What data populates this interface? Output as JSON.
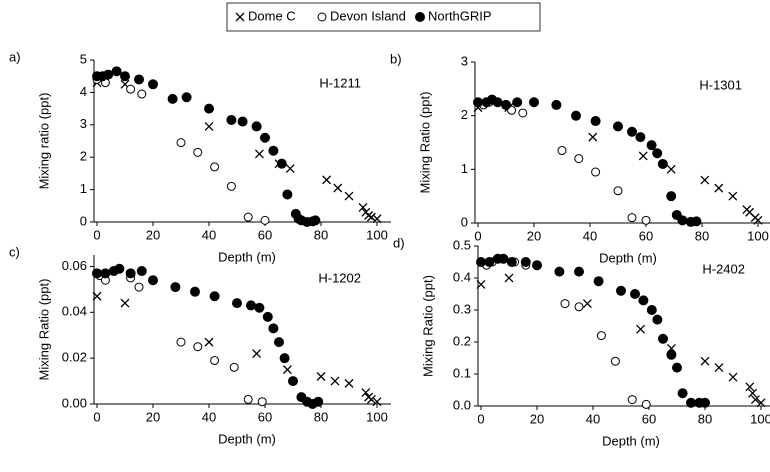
{
  "legend": [
    {
      "name": "Dome C",
      "marker": "cross"
    },
    {
      "name": "Devon Island",
      "marker": "open"
    },
    {
      "name": "NorthGRIP",
      "marker": "filled"
    }
  ],
  "chart_data": [
    {
      "type": "scatter",
      "panel_label": "a)",
      "title": "H-1211",
      "xlabel": "Depth (m)",
      "ylabel": "Mixing ratio (ppt)",
      "xlim": [
        0,
        105
      ],
      "xticks": [
        0,
        20,
        40,
        60,
        80,
        100
      ],
      "ylim": [
        0,
        5
      ],
      "yticks": [
        0,
        1,
        2,
        3,
        4,
        5
      ],
      "series": [
        {
          "marker": "cross",
          "color": "#000000",
          "x": [
            0,
            10,
            40,
            58,
            65,
            69,
            82,
            86,
            90,
            95,
            96,
            97,
            98,
            100
          ],
          "values": [
            4.3,
            4.25,
            2.95,
            2.1,
            1.8,
            1.65,
            1.3,
            1.05,
            0.8,
            0.45,
            0.3,
            0.2,
            0.15,
            0.1
          ]
        },
        {
          "marker": "open",
          "color": "#000000",
          "x": [
            0,
            3,
            12,
            16,
            30,
            36,
            42,
            48,
            54,
            60
          ],
          "values": [
            4.4,
            4.3,
            4.1,
            3.95,
            2.45,
            2.15,
            1.7,
            1.1,
            0.15,
            0.05
          ]
        },
        {
          "marker": "filled",
          "color": "#000000",
          "x": [
            0,
            2,
            4,
            7,
            10,
            15,
            20,
            27,
            32,
            40,
            48,
            52,
            57,
            60,
            63,
            66,
            68,
            71,
            72,
            73,
            75,
            77,
            78
          ],
          "values": [
            4.5,
            4.5,
            4.55,
            4.65,
            4.5,
            4.4,
            4.25,
            3.8,
            3.85,
            3.5,
            3.15,
            3.1,
            2.95,
            2.6,
            2.2,
            1.8,
            0.85,
            0.25,
            0.1,
            0.05,
            0.0,
            0.02,
            0.05
          ]
        }
      ]
    },
    {
      "type": "scatter",
      "panel_label": "b)",
      "title": "H-1301",
      "xlabel": "Depth (m)",
      "ylabel": "Mixing Ratio (ppt)",
      "xlim": [
        0,
        105
      ],
      "xticks": [
        0,
        20,
        40,
        60,
        80,
        100
      ],
      "ylim": [
        0,
        3
      ],
      "yticks": [
        0,
        1,
        2,
        3
      ],
      "series": [
        {
          "marker": "cross",
          "color": "#000000",
          "x": [
            0,
            11,
            41,
            59,
            69,
            81,
            86,
            91,
            96,
            97,
            99,
            100
          ],
          "values": [
            2.15,
            2.15,
            1.6,
            1.25,
            1.0,
            0.8,
            0.65,
            0.5,
            0.25,
            0.2,
            0.1,
            0.05
          ]
        },
        {
          "marker": "open",
          "color": "#000000",
          "x": [
            2,
            4,
            12,
            16,
            30,
            36,
            42,
            50,
            55,
            60
          ],
          "values": [
            2.2,
            2.25,
            2.1,
            2.05,
            1.35,
            1.2,
            0.95,
            0.6,
            0.1,
            0.05
          ]
        },
        {
          "marker": "filled",
          "color": "#000000",
          "x": [
            0,
            3,
            5,
            7,
            10,
            14,
            20,
            28,
            35,
            42,
            50,
            55,
            58,
            62,
            64,
            66,
            69,
            71,
            73,
            76,
            78
          ],
          "values": [
            2.25,
            2.25,
            2.3,
            2.25,
            2.2,
            2.25,
            2.25,
            2.2,
            2.0,
            1.9,
            1.8,
            1.7,
            1.6,
            1.45,
            1.3,
            1.1,
            0.5,
            0.15,
            0.05,
            0.02,
            0.03
          ]
        }
      ]
    },
    {
      "type": "scatter",
      "panel_label": "c)",
      "title": "H-1202",
      "xlabel": "Depth (m)",
      "ylabel": "Mixing Ratio (ppt)",
      "xlim": [
        0,
        105
      ],
      "xticks": [
        0,
        20,
        40,
        60,
        80,
        100
      ],
      "ylim": [
        0,
        0.065
      ],
      "yticks": [
        {
          "value": 0,
          "label": "0.00"
        },
        {
          "value": 0.02,
          "label": "0.02"
        },
        {
          "value": 0.04,
          "label": "0.04"
        },
        {
          "value": 0.06,
          "label": "0.06"
        }
      ],
      "series": [
        {
          "marker": "cross",
          "color": "#000000",
          "x": [
            0,
            10,
            40,
            57,
            68,
            80,
            85,
            90,
            96,
            97,
            98,
            100
          ],
          "values": [
            0.047,
            0.044,
            0.027,
            0.022,
            0.015,
            0.012,
            0.01,
            0.009,
            0.005,
            0.003,
            0.002,
            0.001
          ]
        },
        {
          "marker": "open",
          "color": "#000000",
          "x": [
            1,
            3,
            12,
            15,
            30,
            36,
            42,
            49,
            54,
            59
          ],
          "values": [
            0.056,
            0.054,
            0.055,
            0.051,
            0.027,
            0.025,
            0.019,
            0.016,
            0.002,
            0.001
          ]
        },
        {
          "marker": "filled",
          "color": "#000000",
          "x": [
            0,
            3,
            6,
            8,
            12,
            16,
            20,
            28,
            35,
            42,
            50,
            55,
            58,
            61,
            63,
            65,
            67,
            70,
            73,
            75,
            77,
            79
          ],
          "values": [
            0.057,
            0.057,
            0.058,
            0.059,
            0.057,
            0.058,
            0.054,
            0.051,
            0.049,
            0.047,
            0.044,
            0.043,
            0.042,
            0.038,
            0.033,
            0.027,
            0.02,
            0.01,
            0.003,
            0.001,
            0.0,
            0.001
          ]
        }
      ]
    },
    {
      "type": "scatter",
      "panel_label": "d)",
      "title": "H-2402",
      "xlabel": "Depth (m)",
      "ylabel": "Mixing Ratio (ppt)",
      "xlim": [
        0,
        105
      ],
      "xticks": [
        0,
        20,
        40,
        60,
        80,
        100
      ],
      "ylim": [
        0,
        0.5
      ],
      "yticks": [
        {
          "value": 0,
          "label": "0.0"
        },
        {
          "value": 0.1,
          "label": "0.1"
        },
        {
          "value": 0.2,
          "label": "0.2"
        },
        {
          "value": 0.3,
          "label": "0.3"
        },
        {
          "value": 0.4,
          "label": "0.4"
        },
        {
          "value": 0.5,
          "label": "0.5"
        }
      ],
      "series": [
        {
          "marker": "cross",
          "color": "#000000",
          "x": [
            0,
            10,
            38,
            57,
            68,
            80,
            85,
            90,
            96,
            97,
            98,
            100
          ],
          "values": [
            0.38,
            0.4,
            0.32,
            0.24,
            0.18,
            0.14,
            0.12,
            0.09,
            0.06,
            0.04,
            0.02,
            0.01
          ]
        },
        {
          "marker": "open",
          "color": "#000000",
          "x": [
            2,
            4,
            12,
            16,
            30,
            35,
            43,
            48,
            54,
            59
          ],
          "values": [
            0.44,
            0.45,
            0.45,
            0.44,
            0.32,
            0.31,
            0.22,
            0.14,
            0.02,
            0.005
          ]
        },
        {
          "marker": "filled",
          "color": "#000000",
          "x": [
            0,
            3,
            6,
            8,
            11,
            16,
            20,
            28,
            35,
            42,
            50,
            55,
            58,
            61,
            63,
            65,
            68,
            70,
            72,
            75,
            78,
            80
          ],
          "values": [
            0.45,
            0.45,
            0.46,
            0.46,
            0.45,
            0.45,
            0.44,
            0.42,
            0.42,
            0.39,
            0.36,
            0.35,
            0.33,
            0.3,
            0.27,
            0.21,
            0.16,
            0.12,
            0.04,
            0.01,
            0.01,
            0.01
          ]
        }
      ]
    }
  ]
}
